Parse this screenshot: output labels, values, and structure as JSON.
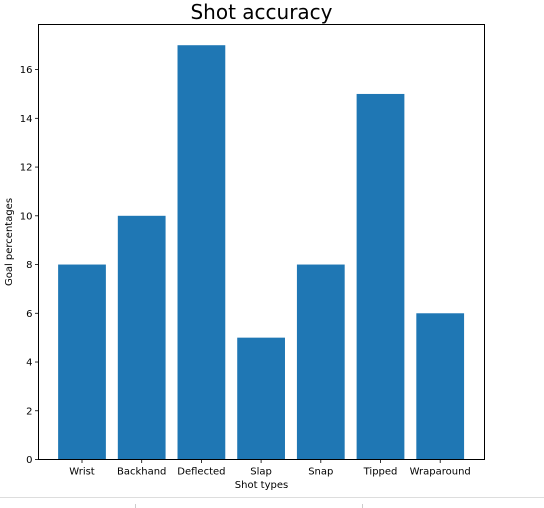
{
  "chart_data": {
    "type": "bar",
    "title": "Shot accuracy",
    "xlabel": "Shot types",
    "ylabel": "Goal percentages",
    "categories": [
      "Wrist",
      "Backhand",
      "Deflected",
      "Slap",
      "Snap",
      "Tipped",
      "Wraparound"
    ],
    "values": [
      8,
      10,
      17,
      5,
      8,
      15,
      6
    ],
    "ylim": [
      0,
      17.85
    ],
    "yticks": [
      0,
      2,
      4,
      6,
      8,
      10,
      12,
      14,
      16
    ],
    "grid": false,
    "bar_color": "#1f77b4"
  }
}
